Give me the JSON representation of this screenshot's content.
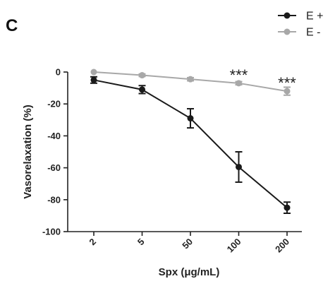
{
  "panel_label": "C",
  "chart_data": {
    "type": "line",
    "title": "",
    "xlabel": "Spx (μg/mL)",
    "ylabel": "Vasorelaxation (%)",
    "categories": [
      "2",
      "5",
      "50",
      "100",
      "200"
    ],
    "ylim": [
      -100,
      0
    ],
    "yticks": [
      0,
      -20,
      -40,
      -60,
      -80,
      -100
    ],
    "ytick_labels": [
      "0",
      "-20",
      "-40",
      "-60",
      "-80",
      "-100"
    ],
    "grid": false,
    "legend_position": "top-right",
    "series": [
      {
        "name": "E +",
        "color": "#1a1a1a",
        "values": [
          -5,
          -11,
          -29,
          -59.5,
          -85
        ],
        "errors": [
          2,
          2.5,
          6,
          9.5,
          3.5
        ]
      },
      {
        "name": "E -",
        "color": "#a8a8a8",
        "values": [
          0,
          -2,
          -4.5,
          -7,
          -12
        ],
        "errors": [
          0.5,
          0.8,
          1,
          1,
          2.5
        ]
      }
    ],
    "annotations": [
      {
        "category": "100",
        "y": -7,
        "text": "***"
      },
      {
        "category": "200",
        "y": -12,
        "text": "***"
      }
    ]
  }
}
